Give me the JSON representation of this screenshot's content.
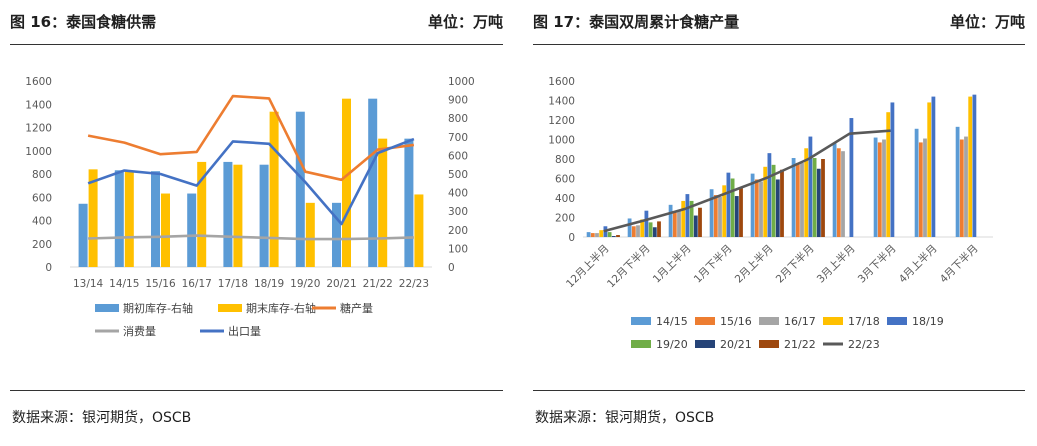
{
  "panels": {
    "left": {
      "title": "图 16：泰国食糖供需",
      "unit": "单位：万吨",
      "source": "数据来源：银河期货，OSCB"
    },
    "right": {
      "title": "图 17：泰国双周累计食糖产量",
      "unit": "单位：万吨",
      "source": "数据来源：银河期货，OSCB"
    }
  },
  "chart_data": [
    {
      "type": "bar",
      "title": "泰国食糖供需",
      "categories": [
        "13/14",
        "14/15",
        "15/16",
        "16/17",
        "17/18",
        "18/19",
        "19/20",
        "20/21",
        "21/22",
        "22/23"
      ],
      "y_left": {
        "min": 0,
        "max": 1600,
        "ticks": [
          0,
          200,
          400,
          600,
          800,
          1000,
          1200,
          1400,
          1600
        ]
      },
      "y_right": {
        "min": 0,
        "max": 1000,
        "ticks": [
          0,
          100,
          200,
          300,
          400,
          500,
          600,
          700,
          800,
          900,
          1000
        ]
      },
      "series": [
        {
          "name": "期初库存-右轴",
          "kind": "bar",
          "axis": "right",
          "color": "#5B9BD5",
          "values": [
            340,
            520,
            515,
            395,
            565,
            550,
            835,
            345,
            905,
            690
          ]
        },
        {
          "name": "期末库存-右轴",
          "kind": "bar",
          "axis": "right",
          "color": "#FFC000",
          "values": [
            525,
            515,
            395,
            565,
            550,
            835,
            345,
            905,
            690,
            390
          ]
        },
        {
          "name": "糖产量",
          "kind": "line",
          "axis": "left",
          "color": "#ED7D31",
          "values": [
            1130,
            1070,
            970,
            990,
            1470,
            1450,
            820,
            750,
            1010,
            1050
          ]
        },
        {
          "name": "消费量",
          "kind": "line",
          "axis": "left",
          "color": "#A5A5A5",
          "values": [
            245,
            255,
            260,
            270,
            260,
            250,
            240,
            240,
            245,
            255
          ]
        },
        {
          "name": "出口量",
          "kind": "line",
          "axis": "left",
          "color": "#4472C4",
          "values": [
            720,
            830,
            800,
            700,
            1080,
            1060,
            730,
            370,
            980,
            1100
          ]
        }
      ]
    },
    {
      "type": "bar",
      "title": "泰国双周累计食糖产量",
      "categories": [
        "12月上半月",
        "12月下半月",
        "1月上半月",
        "1月下半月",
        "2月上半月",
        "2月下半月",
        "3月上半月",
        "3月下半月",
        "4月上半月",
        "4月下半月"
      ],
      "y": {
        "min": 0,
        "max": 1600,
        "ticks": [
          0,
          200,
          400,
          600,
          800,
          1000,
          1200,
          1400,
          1600
        ]
      },
      "series": [
        {
          "name": "14/15",
          "kind": "bar",
          "color": "#5B9BD5",
          "values": [
            50,
            190,
            330,
            490,
            650,
            810,
            960,
            1020,
            1110,
            1130
          ]
        },
        {
          "name": "15/16",
          "kind": "bar",
          "color": "#ED7D31",
          "values": [
            40,
            110,
            260,
            430,
            590,
            760,
            910,
            970,
            970,
            1000
          ]
        },
        {
          "name": "16/17",
          "kind": "bar",
          "color": "#A5A5A5",
          "values": [
            40,
            120,
            270,
            410,
            570,
            760,
            880,
            1000,
            1010,
            1030
          ]
        },
        {
          "name": "17/18",
          "kind": "bar",
          "color": "#FFC000",
          "values": [
            70,
            180,
            370,
            530,
            720,
            910,
            null,
            1280,
            1380,
            1440
          ]
        },
        {
          "name": "18/19",
          "kind": "bar",
          "color": "#4472C4",
          "values": [
            110,
            270,
            440,
            660,
            860,
            1030,
            1220,
            1380,
            1440,
            1460
          ]
        },
        {
          "name": "19/20",
          "kind": "bar",
          "color": "#70AD47",
          "values": [
            50,
            150,
            370,
            600,
            740,
            810,
            null,
            null,
            null,
            null
          ]
        },
        {
          "name": "20/21",
          "kind": "bar",
          "color": "#264478",
          "values": [
            10,
            100,
            220,
            420,
            590,
            700,
            null,
            null,
            null,
            null
          ]
        },
        {
          "name": "21/22",
          "kind": "bar",
          "color": "#9E480E",
          "values": [
            20,
            160,
            300,
            500,
            690,
            800,
            null,
            null,
            null,
            null
          ]
        },
        {
          "name": "22/23",
          "kind": "line",
          "color": "#595959",
          "values": [
            60,
            170,
            290,
            450,
            610,
            800,
            1060,
            1090,
            null,
            null
          ]
        }
      ]
    }
  ]
}
